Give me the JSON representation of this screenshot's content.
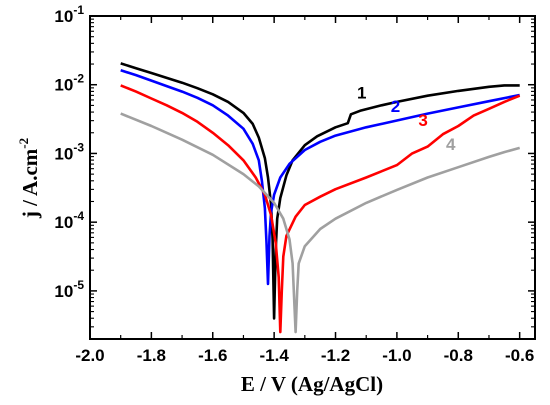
{
  "chart_data": {
    "type": "line",
    "xlabel": "E / V (Ag/AgCl)",
    "ylabel_main": "j / A.cm",
    "ylabel_sup": "-2",
    "xlim": [
      -2.0,
      -0.55
    ],
    "ylim_log10": [
      -5.7,
      -1
    ],
    "y_scale": "log",
    "grid": false,
    "x_ticks": [
      -2.0,
      -1.8,
      -1.6,
      -1.4,
      -1.2,
      -1.0,
      -0.8,
      -0.6
    ],
    "x_tick_labels": [
      "-2.0",
      "-1.8",
      "-1.6",
      "-1.4",
      "-1.2",
      "-1.0",
      "-0.8",
      "-0.6"
    ],
    "y_ticks_log10": [
      -5,
      -4,
      -3,
      -2,
      -1
    ],
    "y_tick_labels": [
      {
        "base": "10",
        "exp": "-5"
      },
      {
        "base": "10",
        "exp": "-4"
      },
      {
        "base": "10",
        "exp": "-3"
      },
      {
        "base": "10",
        "exp": "-2"
      },
      {
        "base": "10",
        "exp": "-1"
      }
    ],
    "series": [
      {
        "label": "1",
        "color": "#000000",
        "label_pos": {
          "x": -1.13,
          "y_log10": -2.2
        },
        "points": [
          [
            -1.9,
            -1.69
          ],
          [
            -1.85,
            -1.76
          ],
          [
            -1.8,
            -1.83
          ],
          [
            -1.75,
            -1.9
          ],
          [
            -1.7,
            -1.97
          ],
          [
            -1.65,
            -2.05
          ],
          [
            -1.6,
            -2.14
          ],
          [
            -1.55,
            -2.25
          ],
          [
            -1.5,
            -2.41
          ],
          [
            -1.47,
            -2.57
          ],
          [
            -1.45,
            -2.77
          ],
          [
            -1.43,
            -3.07
          ],
          [
            -1.42,
            -3.35
          ],
          [
            -1.41,
            -3.75
          ],
          [
            -1.405,
            -4.25
          ],
          [
            -1.4,
            -5.4
          ],
          [
            -1.395,
            -4.4
          ],
          [
            -1.39,
            -3.95
          ],
          [
            -1.38,
            -3.65
          ],
          [
            -1.36,
            -3.32
          ],
          [
            -1.34,
            -3.1
          ],
          [
            -1.3,
            -2.88
          ],
          [
            -1.26,
            -2.75
          ],
          [
            -1.2,
            -2.62
          ],
          [
            -1.16,
            -2.56
          ],
          [
            -1.15,
            -2.43
          ],
          [
            -1.12,
            -2.38
          ],
          [
            -1.05,
            -2.3
          ],
          [
            -1.0,
            -2.25
          ],
          [
            -0.9,
            -2.16
          ],
          [
            -0.8,
            -2.09
          ],
          [
            -0.7,
            -2.03
          ],
          [
            -0.65,
            -2.01
          ],
          [
            -0.6,
            -2.01
          ]
        ]
      },
      {
        "label": "2",
        "color": "#0000ff",
        "label_pos": {
          "x": -1.02,
          "y_log10": -2.4
        },
        "points": [
          [
            -1.9,
            -1.79
          ],
          [
            -1.85,
            -1.86
          ],
          [
            -1.8,
            -1.94
          ],
          [
            -1.75,
            -2.02
          ],
          [
            -1.7,
            -2.1
          ],
          [
            -1.65,
            -2.19
          ],
          [
            -1.6,
            -2.3
          ],
          [
            -1.55,
            -2.45
          ],
          [
            -1.5,
            -2.64
          ],
          [
            -1.47,
            -2.86
          ],
          [
            -1.45,
            -3.1
          ],
          [
            -1.44,
            -3.4
          ],
          [
            -1.43,
            -3.8
          ],
          [
            -1.425,
            -4.3
          ],
          [
            -1.42,
            -4.9
          ],
          [
            -1.415,
            -4.2
          ],
          [
            -1.41,
            -3.85
          ],
          [
            -1.4,
            -3.6
          ],
          [
            -1.38,
            -3.35
          ],
          [
            -1.35,
            -3.15
          ],
          [
            -1.3,
            -2.95
          ],
          [
            -1.25,
            -2.83
          ],
          [
            -1.2,
            -2.74
          ],
          [
            -1.1,
            -2.62
          ],
          [
            -1.0,
            -2.52
          ],
          [
            -0.9,
            -2.42
          ],
          [
            -0.8,
            -2.33
          ],
          [
            -0.7,
            -2.24
          ],
          [
            -0.6,
            -2.15
          ]
        ]
      },
      {
        "label": "3",
        "color": "#ff0000",
        "label_pos": {
          "x": -0.93,
          "y_log10": -2.6
        },
        "points": [
          [
            -1.9,
            -2.01
          ],
          [
            -1.85,
            -2.1
          ],
          [
            -1.8,
            -2.2
          ],
          [
            -1.75,
            -2.3
          ],
          [
            -1.7,
            -2.41
          ],
          [
            -1.65,
            -2.54
          ],
          [
            -1.6,
            -2.7
          ],
          [
            -1.55,
            -2.88
          ],
          [
            -1.5,
            -3.1
          ],
          [
            -1.46,
            -3.35
          ],
          [
            -1.43,
            -3.6
          ],
          [
            -1.41,
            -3.9
          ],
          [
            -1.395,
            -4.3
          ],
          [
            -1.385,
            -4.8
          ],
          [
            -1.38,
            -5.6
          ],
          [
            -1.375,
            -5.0
          ],
          [
            -1.37,
            -4.5
          ],
          [
            -1.36,
            -4.2
          ],
          [
            -1.33,
            -3.92
          ],
          [
            -1.3,
            -3.75
          ],
          [
            -1.25,
            -3.63
          ],
          [
            -1.2,
            -3.52
          ],
          [
            -1.1,
            -3.35
          ],
          [
            -1.0,
            -3.17
          ],
          [
            -0.95,
            -3.0
          ],
          [
            -0.9,
            -2.9
          ],
          [
            -0.85,
            -2.72
          ],
          [
            -0.8,
            -2.6
          ],
          [
            -0.75,
            -2.45
          ],
          [
            -0.7,
            -2.35
          ],
          [
            -0.65,
            -2.25
          ],
          [
            -0.6,
            -2.16
          ]
        ]
      },
      {
        "label": "4",
        "color": "#a0a0a0",
        "label_pos": {
          "x": -0.84,
          "y_log10": -2.95
        },
        "points": [
          [
            -1.9,
            -2.42
          ],
          [
            -1.8,
            -2.6
          ],
          [
            -1.7,
            -2.8
          ],
          [
            -1.6,
            -3.02
          ],
          [
            -1.5,
            -3.3
          ],
          [
            -1.45,
            -3.48
          ],
          [
            -1.4,
            -3.72
          ],
          [
            -1.37,
            -3.95
          ],
          [
            -1.35,
            -4.25
          ],
          [
            -1.34,
            -4.6
          ],
          [
            -1.335,
            -5.1
          ],
          [
            -1.33,
            -5.6
          ],
          [
            -1.325,
            -5.0
          ],
          [
            -1.32,
            -4.6
          ],
          [
            -1.3,
            -4.35
          ],
          [
            -1.25,
            -4.1
          ],
          [
            -1.2,
            -3.95
          ],
          [
            -1.1,
            -3.72
          ],
          [
            -1.0,
            -3.53
          ],
          [
            -0.9,
            -3.35
          ],
          [
            -0.8,
            -3.2
          ],
          [
            -0.7,
            -3.05
          ],
          [
            -0.65,
            -2.98
          ],
          [
            -0.6,
            -2.92
          ]
        ]
      }
    ]
  }
}
